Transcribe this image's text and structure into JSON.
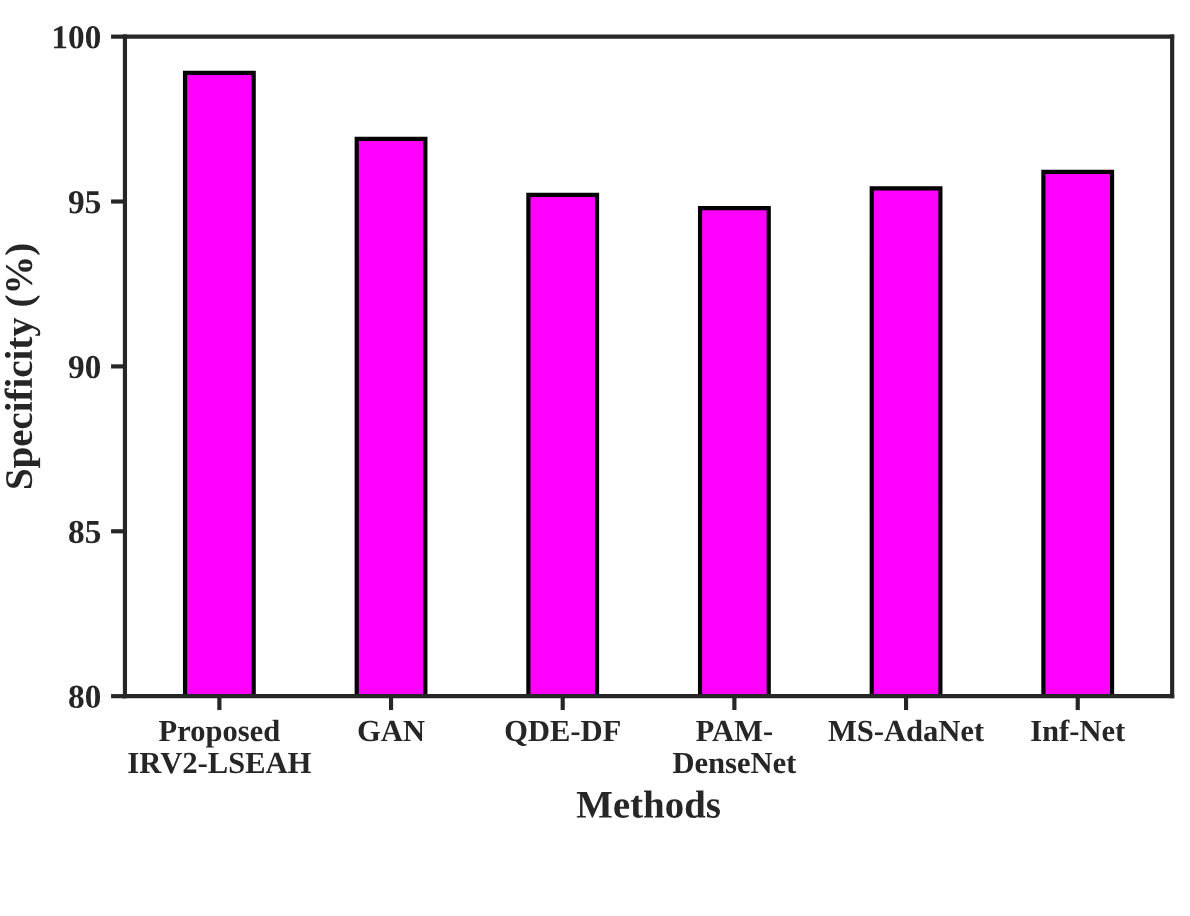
{
  "chart_data": {
    "type": "bar",
    "xlabel": "Methods",
    "ylabel": "Specificity (%)",
    "categories": [
      "Proposed\nIRV2-LSEAH",
      "GAN",
      "QDE-DF",
      "PAM-\nDenseNet",
      "MS-AdaNet",
      "Inf-Net"
    ],
    "values": [
      98.9,
      96.9,
      95.2,
      94.8,
      95.4,
      95.9
    ],
    "color": "#ff00ff",
    "ylim": [
      80,
      100
    ],
    "yticks": [
      80,
      85,
      90,
      95,
      100
    ],
    "grid": false,
    "legend": false
  }
}
